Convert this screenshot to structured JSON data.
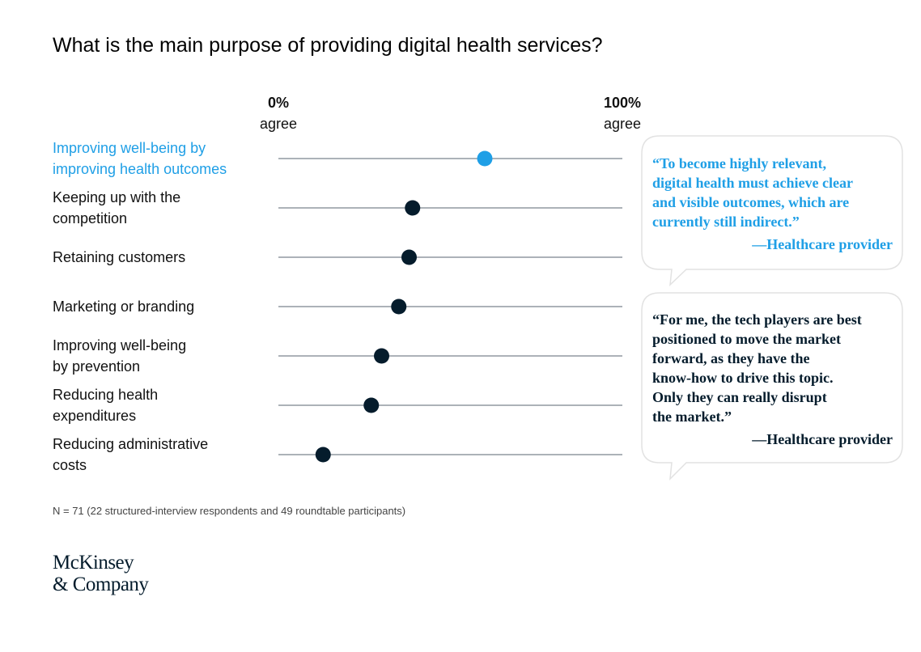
{
  "chart_data": {
    "type": "dot",
    "title": "What is the main purpose of providing digital health services?",
    "categories": [
      "Improving well-being by\nimproving health outcomes",
      "Keeping up with the\ncompetition",
      "Retaining customers",
      "Marketing or branding",
      "Improving well-being\nby prevention",
      "Reducing health\nexpenditures",
      "Reducing administrative\ncosts"
    ],
    "values": [
      60,
      39,
      38,
      35,
      30,
      27,
      13
    ],
    "colors": [
      "#1f9fe6",
      "#051c2c",
      "#051c2c",
      "#051c2c",
      "#051c2c",
      "#051c2c",
      "#051c2c"
    ],
    "xlim": [
      0,
      100
    ],
    "xticks": [
      {
        "value": 0,
        "label": "0%"
      },
      {
        "value": 100,
        "label": "100%"
      }
    ],
    "xlabel": "agree",
    "annotations": [
      {
        "text": "“To become highly relevant,\n digital health must achieve clear\n and visible outcomes, which are\n currently still indirect.”",
        "attribution": "—Healthcare provider",
        "color": "#1f9fe6"
      },
      {
        "text": "“For me, the tech players are best\n positioned to move the market\n forward, as they have the\n know-how to drive this topic.\n Only they can really disrupt\n the market.”",
        "attribution": "—Healthcare provider",
        "color": "#051c2c"
      }
    ],
    "note": "N = 71 (22 structured-interview respondents and 49 roundtable participants)",
    "source": "McKinsey\n    & Company"
  }
}
